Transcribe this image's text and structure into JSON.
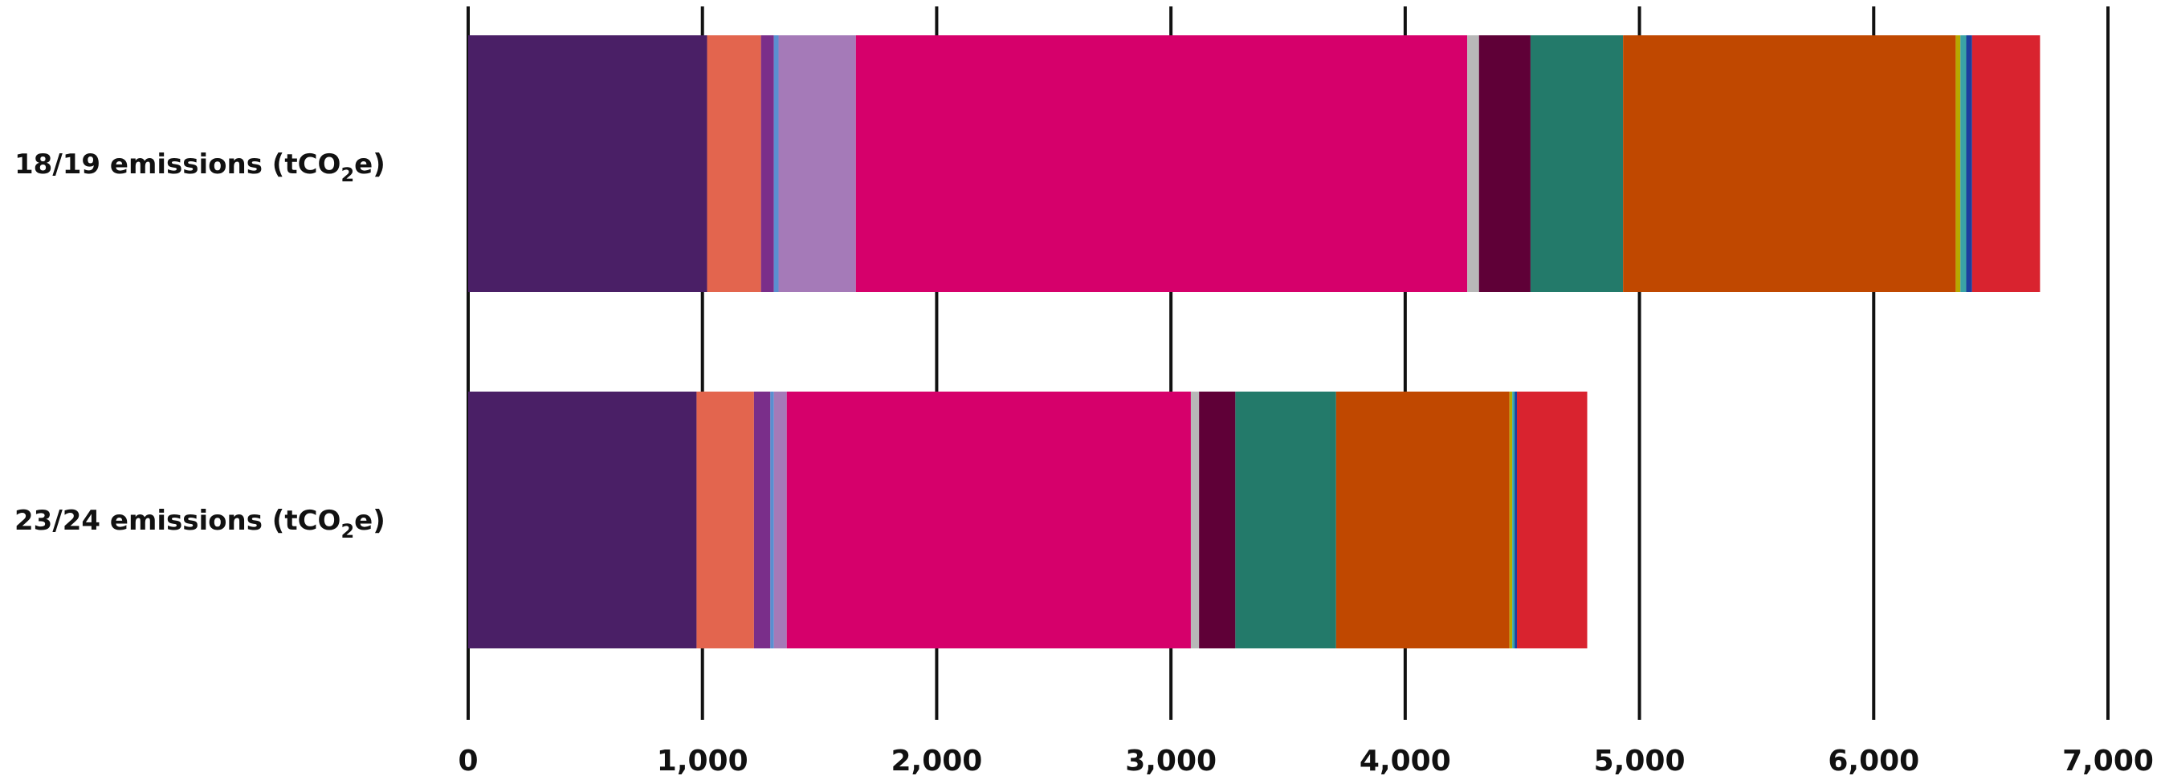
{
  "chart_data": {
    "type": "bar",
    "orientation": "horizontal",
    "stacked": true,
    "categories": [
      {
        "label": "18/19 emissions (tCO",
        "subscript": "2",
        "suffix": "e)"
      },
      {
        "label": "23/24 emissions (tCO",
        "subscript": "2",
        "suffix": "e)"
      }
    ],
    "xlim": [
      0,
      7000
    ],
    "grid": true,
    "legend": "none",
    "xticks": [
      {
        "value": 0,
        "label": "0"
      },
      {
        "value": 1000,
        "label": "1,000"
      },
      {
        "value": 2000,
        "label": "2,000"
      },
      {
        "value": 3000,
        "label": "3,000"
      },
      {
        "value": 4000,
        "label": "4,000"
      },
      {
        "value": 5000,
        "label": "5,000"
      },
      {
        "value": 6000,
        "label": "6,000"
      },
      {
        "value": 7000,
        "label": "7,000"
      }
    ],
    "segments": [
      {
        "color": "#4a1f66",
        "values": [
          1020,
          975
        ]
      },
      {
        "color": "#e3654e",
        "values": [
          230,
          245
        ]
      },
      {
        "color": "#7a2e8a",
        "values": [
          55,
          70
        ]
      },
      {
        "color": "#5a8fd0",
        "values": [
          20,
          15
        ]
      },
      {
        "color": "#a57ab8",
        "values": [
          330,
          55
        ]
      },
      {
        "color": "#d6006b",
        "values": [
          2610,
          1725
        ]
      },
      {
        "color": "#b8b8b8",
        "values": [
          50,
          35
        ]
      },
      {
        "color": "#5f0037",
        "values": [
          220,
          155
        ]
      },
      {
        "color": "#237a6a",
        "values": [
          395,
          430
        ]
      },
      {
        "color": "#c04800",
        "values": [
          1420,
          740
        ]
      },
      {
        "color": "#b7a800",
        "values": [
          20,
          12
        ]
      },
      {
        "color": "#3aa3a6",
        "values": [
          25,
          10
        ]
      },
      {
        "color": "#1c3f9e",
        "values": [
          25,
          10
        ]
      },
      {
        "color": "#d9232f",
        "values": [
          290,
          300
        ]
      }
    ]
  }
}
